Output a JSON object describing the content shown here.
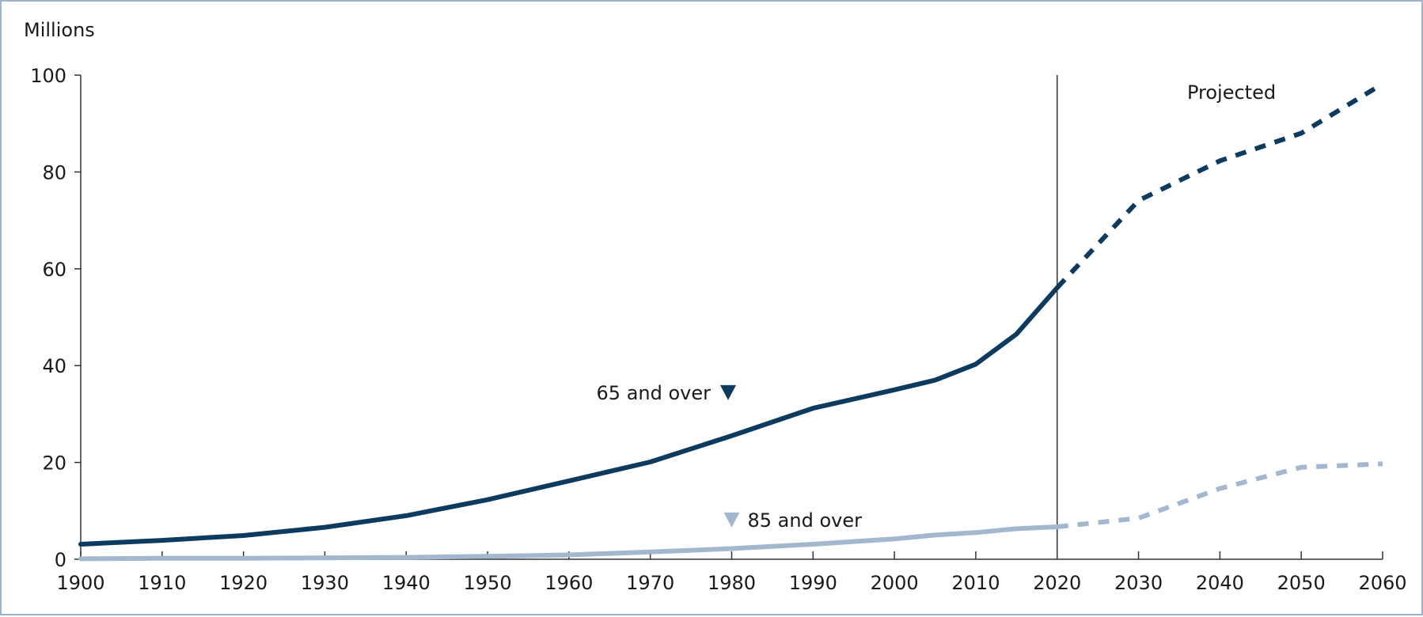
{
  "chart_data": {
    "type": "line",
    "ylabel": "Millions",
    "xlim": [
      1900,
      2060
    ],
    "ylim": [
      0,
      100
    ],
    "x_ticks": [
      1900,
      1910,
      1920,
      1930,
      1940,
      1950,
      1960,
      1970,
      1980,
      1990,
      2000,
      2010,
      2020,
      2030,
      2040,
      2050,
      2060
    ],
    "y_ticks": [
      0,
      20,
      40,
      60,
      80,
      100
    ],
    "grid": false,
    "projection_start": 2020,
    "projection_label": "Projected",
    "colors": {
      "series_65": "#0d3a5f",
      "series_85": "#a3b8cf",
      "divider": "#333333",
      "frame": "#9fb4c8"
    },
    "series": [
      {
        "name": "65 and over",
        "x": [
          1900,
          1910,
          1920,
          1930,
          1940,
          1950,
          1960,
          1970,
          1980,
          1990,
          2000,
          2005,
          2010,
          2015,
          2020,
          2030,
          2040,
          2050,
          2060
        ],
        "values": [
          3.1,
          3.9,
          4.9,
          6.6,
          9.0,
          12.3,
          16.2,
          20.1,
          25.5,
          31.2,
          35.0,
          37.0,
          40.3,
          46.5,
          56.1,
          74.1,
          82.3,
          88.0,
          98.2
        ]
      },
      {
        "name": "85 and over",
        "x": [
          1900,
          1910,
          1920,
          1930,
          1940,
          1950,
          1960,
          1970,
          1980,
          1990,
          2000,
          2005,
          2010,
          2015,
          2020,
          2030,
          2040,
          2050,
          2060
        ],
        "values": [
          0.1,
          0.2,
          0.2,
          0.3,
          0.4,
          0.6,
          0.9,
          1.5,
          2.2,
          3.1,
          4.2,
          5.0,
          5.5,
          6.3,
          6.7,
          8.5,
          14.6,
          19.0,
          19.7
        ]
      }
    ]
  }
}
